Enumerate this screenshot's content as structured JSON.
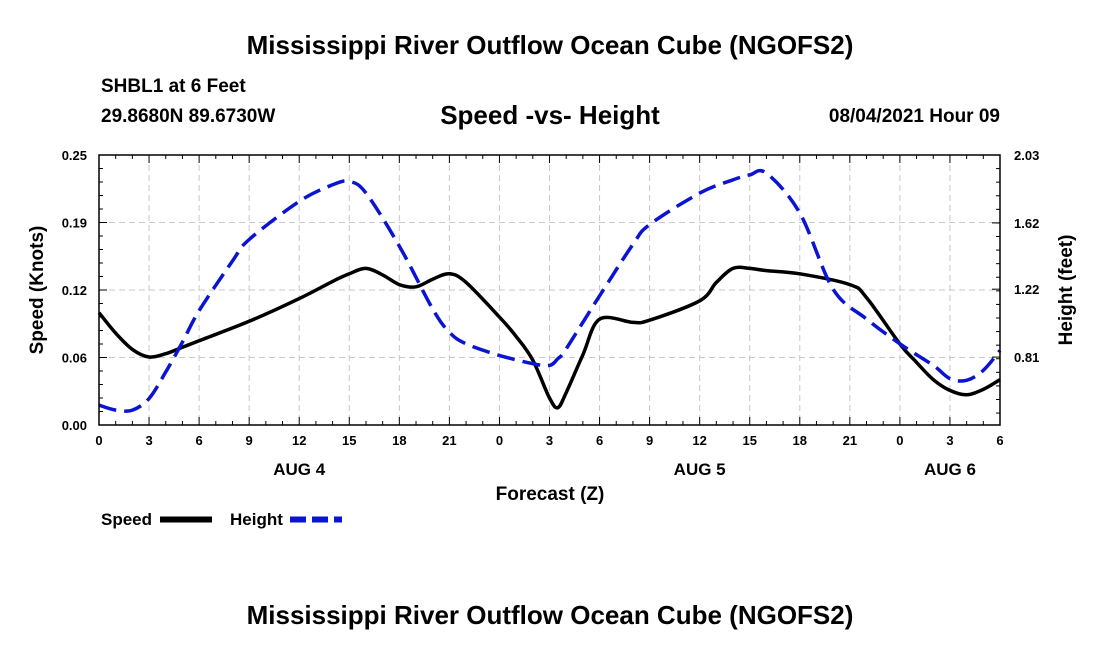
{
  "page": {
    "title": "Mississippi River Outflow Ocean Cube (NGOFS2)",
    "footer_title": "Mississippi River Outflow Ocean Cube (NGOFS2)",
    "station": "SHBL1 at 6 Feet",
    "coordinates": "29.8680N  89.6730W",
    "subtitle": "Speed -vs- Height",
    "datetime": "08/04/2021 Hour 09"
  },
  "chart_data": {
    "type": "line",
    "xlabel": "Forecast (Z)",
    "ylabel": "Speed (Knots)",
    "y2label": "Height (feet)",
    "xlim": [
      0,
      54
    ],
    "ylim": [
      0,
      0.25
    ],
    "y2lim": [
      0.4,
      2.03
    ],
    "x_ticks": [
      0,
      3,
      6,
      9,
      12,
      15,
      18,
      21,
      24,
      27,
      30,
      33,
      36,
      39,
      42,
      45,
      48,
      51,
      54
    ],
    "x_tick_labels": [
      "0",
      "3",
      "6",
      "9",
      "12",
      "15",
      "18",
      "21",
      "0",
      "3",
      "6",
      "9",
      "12",
      "15",
      "18",
      "21",
      "0",
      "3",
      "6"
    ],
    "y_ticks": [
      0,
      0.0625,
      0.125,
      0.1875,
      0.25
    ],
    "y_tick_labels": [
      "0.00",
      "0.06",
      "0.12",
      "0.19",
      "0.25"
    ],
    "y2_ticks": [
      0.81,
      1.22,
      1.62,
      2.03
    ],
    "y2_tick_labels": [
      "0.81",
      "1.22",
      "1.62",
      "2.03"
    ],
    "date_labels": [
      {
        "label": "AUG 4",
        "x": 12
      },
      {
        "label": "AUG 5",
        "x": 36
      },
      {
        "label": "AUG 6",
        "x": 51
      }
    ],
    "grid": true,
    "series": [
      {
        "name": "Speed",
        "axis": "left",
        "color": "#000000",
        "dash": "solid",
        "x": [
          0,
          1,
          2,
          3,
          4,
          5,
          6,
          9,
          12,
          14,
          15,
          16,
          17,
          18,
          19,
          20,
          21,
          22,
          24,
          25,
          26,
          27,
          27.5,
          28,
          29,
          30,
          32,
          33,
          36,
          37,
          38,
          39,
          40,
          42,
          45,
          46,
          48,
          49,
          50,
          51,
          52,
          53,
          54
        ],
        "y": [
          0.104,
          0.085,
          0.07,
          0.063,
          0.066,
          0.072,
          0.078,
          0.096,
          0.117,
          0.133,
          0.14,
          0.145,
          0.139,
          0.13,
          0.128,
          0.135,
          0.14,
          0.132,
          0.1,
          0.082,
          0.06,
          0.025,
          0.016,
          0.03,
          0.065,
          0.098,
          0.095,
          0.097,
          0.115,
          0.132,
          0.145,
          0.145,
          0.143,
          0.14,
          0.13,
          0.118,
          0.075,
          0.058,
          0.042,
          0.032,
          0.028,
          0.033,
          0.042
        ]
      },
      {
        "name": "Height",
        "axis": "right",
        "color": "#0a14d2",
        "dash": "dashed",
        "x": [
          0,
          1,
          2,
          3,
          4,
          5,
          6,
          8,
          9,
          12,
          14,
          15,
          16,
          18,
          20,
          21,
          22,
          24,
          26,
          27,
          27.5,
          28,
          30,
          32,
          33,
          36,
          38,
          39,
          40,
          42,
          44,
          46,
          48,
          50,
          51,
          52,
          53,
          54
        ],
        "y": [
          0.52,
          0.49,
          0.49,
          0.56,
          0.72,
          0.9,
          1.09,
          1.39,
          1.52,
          1.75,
          1.85,
          1.87,
          1.8,
          1.48,
          1.1,
          0.96,
          0.89,
          0.82,
          0.77,
          0.76,
          0.8,
          0.86,
          1.18,
          1.49,
          1.61,
          1.8,
          1.88,
          1.91,
          1.92,
          1.68,
          1.22,
          1.04,
          0.89,
          0.76,
          0.68,
          0.67,
          0.73,
          0.85
        ]
      }
    ],
    "legend": [
      {
        "label": "Speed",
        "style": "solid",
        "color": "#000000"
      },
      {
        "label": "Height",
        "style": "dashed",
        "color": "#0a14d2"
      }
    ],
    "legend_position": "bottom-left"
  }
}
